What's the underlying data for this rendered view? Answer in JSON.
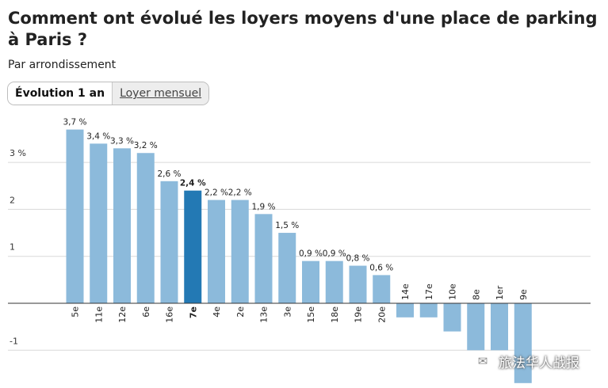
{
  "title": "Comment ont évolué les loyers moyens d'une place de parking à Paris ?",
  "subtitle": "Par arrondissement",
  "tabs": [
    {
      "label": "Évolution 1 an",
      "active": true
    },
    {
      "label": "Loyer mensuel",
      "active": false
    }
  ],
  "watermark": {
    "text": "旅法华人战报",
    "icon": "wechat-icon"
  },
  "colors": {
    "bar": "#8cbadb",
    "highlight": "#2379b4",
    "grid": "#d9d9d9",
    "axis": "#333333"
  },
  "chart_data": {
    "type": "bar",
    "categories": [
      "5e",
      "11e",
      "12e",
      "6e",
      "16e",
      "7e",
      "4e",
      "2e",
      "13e",
      "3e",
      "15e",
      "18e",
      "19e",
      "20e",
      "14e",
      "17e",
      "10e",
      "8e",
      "1er",
      "9e"
    ],
    "values": [
      3.7,
      3.4,
      3.3,
      3.2,
      2.6,
      2.4,
      2.2,
      2.2,
      1.9,
      1.5,
      0.9,
      0.9,
      0.8,
      0.6,
      -0.3,
      -0.3,
      -0.6,
      -1.0,
      -1.0,
      -1.7
    ],
    "data_labels": [
      "3,7 %",
      "3,4 %",
      "3,3 %",
      "3,2 %",
      "2,6 %",
      "2,4 %",
      "2,2 %",
      "2,2 %",
      "1,9 %",
      "1,5 %",
      "0,9 %",
      "0,9 %",
      "0,8 %",
      "0,6 %",
      "",
      "",
      "",
      "",
      "",
      ""
    ],
    "highlight": "7e",
    "y_ticks": [
      {
        "value": 3,
        "label": "3 %"
      },
      {
        "value": 2,
        "label": "2"
      },
      {
        "value": 1,
        "label": "1"
      },
      {
        "value": -1,
        "label": "-1"
      }
    ],
    "ylim": [
      -1.7,
      3.7
    ],
    "grid": true,
    "title": "",
    "xlabel": "",
    "ylabel": ""
  }
}
